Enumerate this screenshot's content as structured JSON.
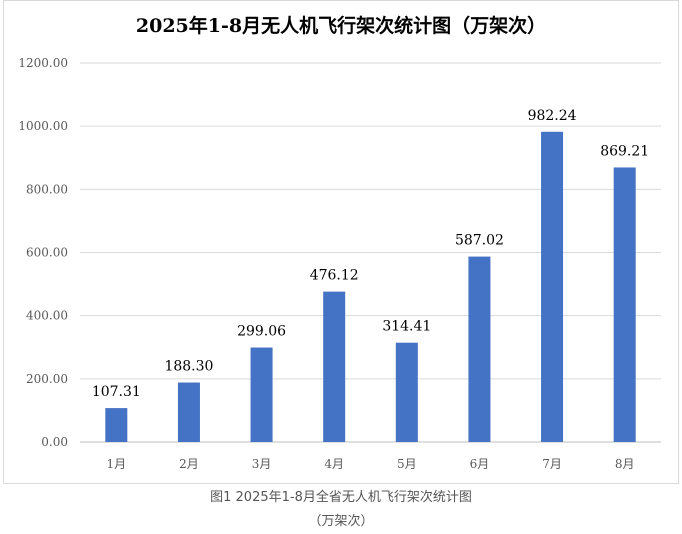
{
  "chart_data": {
    "type": "bar",
    "title": "2025年1-8月无人机飞行架次统计图（万架次）",
    "categories": [
      "1月",
      "2月",
      "3月",
      "4月",
      "5月",
      "6月",
      "7月",
      "8月"
    ],
    "values": [
      107.31,
      188.3,
      299.06,
      476.12,
      314.41,
      587.02,
      982.24,
      869.21
    ],
    "value_labels": [
      "107.31",
      "188.30",
      "299.06",
      "476.12",
      "314.41",
      "587.02",
      "982.24",
      "869.21"
    ],
    "yticks": [
      "0.00",
      "200.00",
      "400.00",
      "600.00",
      "800.00",
      "1000.00",
      "1200.00"
    ],
    "ylim": [
      0,
      1200
    ],
    "grid": true,
    "legend": "none",
    "bar_color": "#4472c4"
  },
  "caption": {
    "line1": "图1 2025年1-8月全省无人机飞行架次统计图",
    "line2": "（万架次）"
  }
}
